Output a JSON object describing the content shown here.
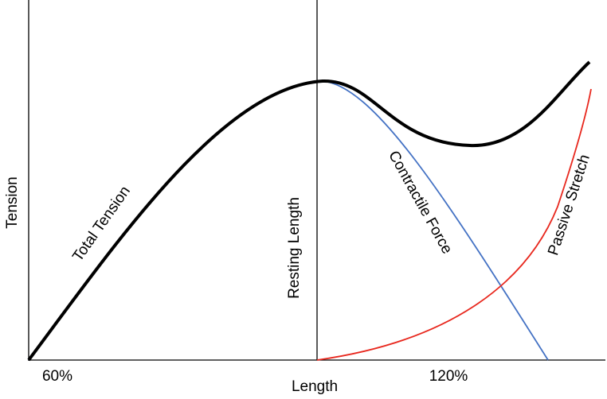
{
  "axes": {
    "y_label": "Tension",
    "x_label": "Length",
    "x_ticks": [
      "60%",
      "120%"
    ]
  },
  "curve_labels": {
    "total": "Total Tension",
    "resting": "Resting Length",
    "contractile": "Contractile Force",
    "passive": "Passive Stretch"
  }
}
